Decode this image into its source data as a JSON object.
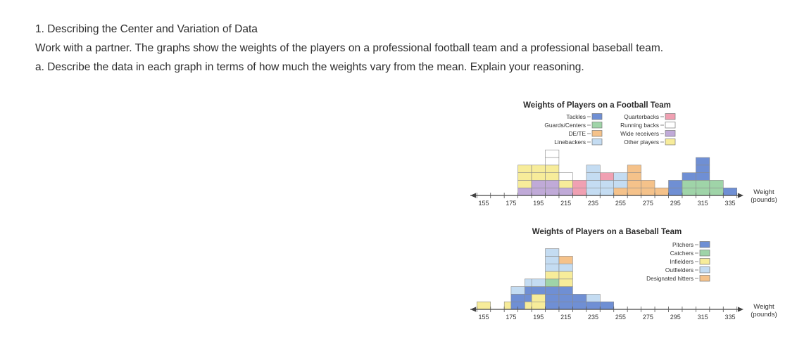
{
  "heading": "1. Describing the Center and Variation of Data",
  "intro": "Work with a partner. The graphs show the weights of the players on a professional football team and a professional baseball team.",
  "question_a": "a. Describe the data in each graph in terms of how much the weights vary from the mean. Explain your reasoning.",
  "colors": {
    "Tackles": "#6f8fd4",
    "Guards/Centers": "#9fd4a8",
    "DE/TE": "#f5c28a",
    "Linebackers": "#c4dcf2",
    "Quarterbacks": "#f0a0b2",
    "Running backs": "#ffffff",
    "Wide receivers": "#c0aad8",
    "Other players": "#f7ec9a",
    "Pitchers": "#6f8fd4",
    "Catchers": "#9fd4a8",
    "Infielders": "#f7ec9a",
    "Outfielders": "#c4dcf2",
    "Designated hitters": "#f5c28a"
  },
  "chart_data": [
    {
      "type": "dot plot",
      "title": "Weights of Players on a Football Team",
      "xlabel": "Weight (pounds)",
      "xlim": [
        150,
        345
      ],
      "tick_labels": [
        155,
        175,
        195,
        215,
        235,
        255,
        275,
        295,
        315,
        335
      ],
      "legend": [
        "Tackles",
        "Guards/Centers",
        "DE/TE",
        "Linebackers",
        "Quarterbacks",
        "Running backs",
        "Wide receivers",
        "Other players"
      ],
      "columns": [
        {
          "x": 185,
          "stack": [
            "Wide receivers",
            "Other players",
            "Other players",
            "Other players"
          ]
        },
        {
          "x": 195,
          "stack": [
            "Wide receivers",
            "Wide receivers",
            "Other players",
            "Other players"
          ]
        },
        {
          "x": 205,
          "stack": [
            "Wide receivers",
            "Wide receivers",
            "Other players",
            "Other players",
            "Running backs",
            "Running backs"
          ]
        },
        {
          "x": 215,
          "stack": [
            "Wide receivers",
            "Other players",
            "Running backs"
          ]
        },
        {
          "x": 225,
          "stack": [
            "Quarterbacks",
            "Quarterbacks"
          ]
        },
        {
          "x": 235,
          "stack": [
            "Linebackers",
            "Linebackers",
            "Linebackers",
            "Linebackers"
          ]
        },
        {
          "x": 245,
          "stack": [
            "Linebackers",
            "Linebackers",
            "Quarterbacks"
          ]
        },
        {
          "x": 255,
          "stack": [
            "DE/TE",
            "Linebackers",
            "Linebackers"
          ]
        },
        {
          "x": 265,
          "stack": [
            "DE/TE",
            "DE/TE",
            "DE/TE",
            "DE/TE"
          ]
        },
        {
          "x": 275,
          "stack": [
            "DE/TE",
            "DE/TE"
          ]
        },
        {
          "x": 285,
          "stack": [
            "DE/TE"
          ]
        },
        {
          "x": 295,
          "stack": [
            "Tackles",
            "Tackles"
          ]
        },
        {
          "x": 305,
          "stack": [
            "Guards/Centers",
            "Guards/Centers",
            "Tackles"
          ]
        },
        {
          "x": 315,
          "stack": [
            "Guards/Centers",
            "Guards/Centers",
            "Tackles",
            "Tackles",
            "Tackles"
          ]
        },
        {
          "x": 325,
          "stack": [
            "Guards/Centers",
            "Guards/Centers"
          ]
        },
        {
          "x": 335,
          "stack": [
            "Tackles"
          ]
        }
      ]
    },
    {
      "type": "dot plot",
      "title": "Weights of Players on a Baseball Team",
      "xlabel": "Weight (pounds)",
      "xlim": [
        150,
        345
      ],
      "tick_labels": [
        155,
        175,
        195,
        215,
        235,
        255,
        275,
        295,
        315,
        335
      ],
      "legend": [
        "Pitchers",
        "Catchers",
        "Infielders",
        "Outfielders",
        "Designated hitters"
      ],
      "columns": [
        {
          "x": 155,
          "stack": [
            "Infielders"
          ]
        },
        {
          "x": 175,
          "stack": [
            "Infielders"
          ]
        },
        {
          "x": 180,
          "stack": [
            "Pitchers",
            "Pitchers",
            "Outfielders"
          ]
        },
        {
          "x": 190,
          "stack": [
            "Infielders",
            "Pitchers",
            "Pitchers",
            "Outfielders"
          ]
        },
        {
          "x": 195,
          "stack": [
            "Infielders",
            "Infielders",
            "Pitchers",
            "Outfielders"
          ]
        },
        {
          "x": 205,
          "stack": [
            "Pitchers",
            "Pitchers",
            "Pitchers",
            "Catchers",
            "Infielders",
            "Outfielders",
            "Outfielders",
            "Outfielders"
          ]
        },
        {
          "x": 215,
          "stack": [
            "Pitchers",
            "Pitchers",
            "Pitchers",
            "Infielders",
            "Infielders",
            "Outfielders",
            "Designated hitters"
          ]
        },
        {
          "x": 225,
          "stack": [
            "Pitchers",
            "Pitchers"
          ]
        },
        {
          "x": 235,
          "stack": [
            "Pitchers",
            "Outfielders"
          ]
        },
        {
          "x": 245,
          "stack": [
            "Pitchers"
          ]
        }
      ]
    }
  ]
}
